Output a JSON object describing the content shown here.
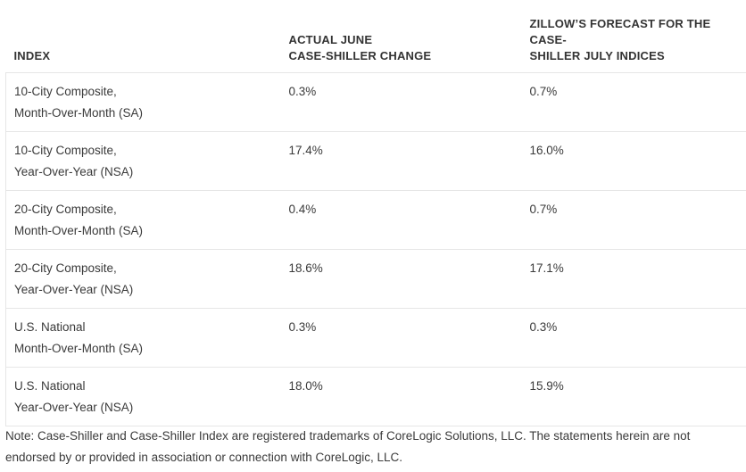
{
  "table": {
    "headers": [
      [
        "INDEX"
      ],
      [
        "ACTUAL JUNE",
        "CASE-SHILLER CHANGE"
      ],
      [
        "ZILLOW’S FORECAST FOR THE CASE-",
        "SHILLER JULY INDICES"
      ]
    ],
    "rows": [
      {
        "index": [
          "10-City Composite,",
          "Month-Over-Month (SA)"
        ],
        "actual": "0.3%",
        "forecast": "0.7%"
      },
      {
        "index": [
          "10-City Composite,",
          "Year-Over-Year (NSA)"
        ],
        "actual": "17.4%",
        "forecast": "16.0%"
      },
      {
        "index": [
          "20-City Composite,",
          "Month-Over-Month (SA)"
        ],
        "actual": "0.4%",
        "forecast": "0.7%"
      },
      {
        "index": [
          "20-City Composite,",
          "Year-Over-Year (NSA)"
        ],
        "actual": "18.6%",
        "forecast": "17.1%"
      },
      {
        "index": [
          "U.S. National",
          "Month-Over-Month (SA)"
        ],
        "actual": "0.3%",
        "forecast": "0.3%"
      },
      {
        "index": [
          "U.S. National",
          "Year-Over-Year (NSA)"
        ],
        "actual": "18.0%",
        "forecast": "15.9%"
      }
    ]
  },
  "note": {
    "lines": [
      "Note: Case-Shiller and Case-Shiller Index are registered trademarks of CoreLogic Solutions, LLC. The statements herein are not",
      "endorsed by or provided in association or connection with CoreLogic, LLC."
    ]
  },
  "colors": {
    "text": "#3a3a3a",
    "header_text": "#333333",
    "rule": "#e6e6e6",
    "background": "#ffffff"
  }
}
